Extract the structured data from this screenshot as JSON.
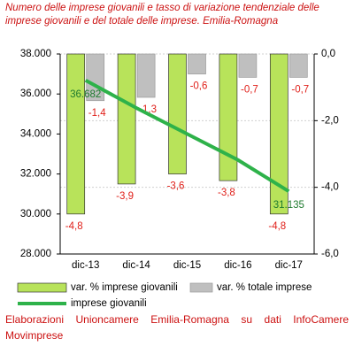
{
  "chart_data": {
    "type": "bar",
    "title": "Numero delle imprese giovanili e tasso di variazione tendenziale delle imprese giovanili e del totale delle imprese. Emilia-Romagna",
    "categories": [
      "dic-13",
      "dic-14",
      "dic-15",
      "dic-16",
      "dic-17"
    ],
    "series": [
      {
        "name": "var. % imprese giovanili",
        "type": "bar",
        "axis": "y2",
        "color": "#b8e35a",
        "values": [
          -4.8,
          -3.9,
          -3.6,
          -3.8,
          -4.8
        ],
        "value_labels": [
          "-4,8",
          "-3,9",
          "-3,6",
          "-3,8",
          "-4,8"
        ]
      },
      {
        "name": "var. % totale imprese",
        "type": "bar",
        "axis": "y2",
        "color": "#bfbfbf",
        "values": [
          -1.4,
          -1.3,
          -0.6,
          -0.7,
          -0.7
        ],
        "value_labels": [
          "-1,4",
          "-1,3",
          "-0,6",
          "-0,7",
          "-0,7"
        ]
      },
      {
        "name": "imprese giovanili",
        "type": "line",
        "axis": "y",
        "color": "#2eb24a",
        "values": [
          36682,
          35300,
          34000,
          32700,
          31135
        ],
        "value_labels": [
          "36.682",
          null,
          null,
          null,
          "31.135"
        ]
      }
    ],
    "ylim": [
      28000,
      38000
    ],
    "yticks": [
      {
        "value": 28000,
        "label": "28.000"
      },
      {
        "value": 30000,
        "label": "30.000"
      },
      {
        "value": 32000,
        "label": "32.000"
      },
      {
        "value": 34000,
        "label": "34.000"
      },
      {
        "value": 36000,
        "label": "36.000"
      },
      {
        "value": 38000,
        "label": "38.000"
      }
    ],
    "y2lim": [
      -6,
      0
    ],
    "y2ticks": [
      {
        "value": -6,
        "label": "-6,0"
      },
      {
        "value": -4,
        "label": "-4,0"
      },
      {
        "value": -2,
        "label": "-2,0"
      },
      {
        "value": 0,
        "label": "0,0"
      }
    ],
    "grid": true,
    "source": "Elaborazioni Unioncamere Emilia-Romagna su dati InfoCamere Movimprese"
  }
}
